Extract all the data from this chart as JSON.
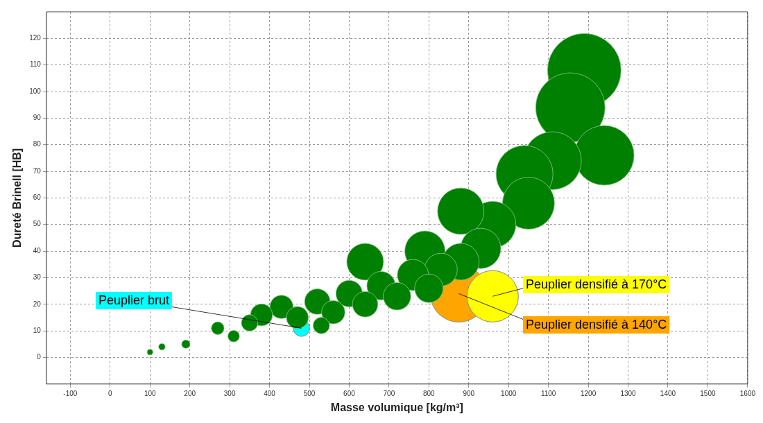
{
  "chart_data": {
    "type": "bubble",
    "xlabel": "Masse volumique [kg/m³]",
    "ylabel": "Dureté Brinell [HB]",
    "xlim": [
      -160,
      1600
    ],
    "ylim": [
      -10,
      130
    ],
    "xticks": [
      -100,
      0,
      100,
      200,
      300,
      400,
      500,
      600,
      700,
      800,
      900,
      1000,
      1100,
      1200,
      1300,
      1400,
      1500,
      1600
    ],
    "yticks": [
      0,
      10,
      20,
      30,
      40,
      50,
      60,
      70,
      80,
      90,
      100,
      110,
      120
    ],
    "grid": true,
    "legend": false,
    "series": [
      {
        "color": "#008000",
        "x": [
          1190,
          1155,
          1240,
          1110,
          1040,
          1050,
          960,
          880,
          930,
          790,
          880,
          640,
          830,
          760,
          680,
          800,
          720,
          600,
          640,
          520,
          560,
          430,
          470,
          380,
          350,
          530,
          270,
          310,
          190,
          130,
          100
        ],
        "values": [
          108,
          94,
          76,
          74,
          69,
          58,
          50,
          55,
          41,
          40,
          36,
          36,
          33,
          31,
          27,
          26,
          23,
          24,
          20,
          21,
          17,
          19,
          15,
          16,
          13,
          12,
          11,
          8,
          5,
          4,
          2
        ],
        "sizes": [
          1,
          0.89,
          0.66,
          0.62,
          0.6,
          0.5,
          0.4,
          0.4,
          0.3,
          0.3,
          0.25,
          0.25,
          0.2,
          0.18,
          0.15,
          0.15,
          0.14,
          0.13,
          0.12,
          0.12,
          0.1,
          0.1,
          0.09,
          0.09,
          0.05,
          0.05,
          0.03,
          0.025,
          0.013,
          0.008,
          0.006
        ]
      },
      {
        "name": "Peuplier brut",
        "color": "#00ffff",
        "x": [
          480
        ],
        "values": [
          11
        ],
        "sizes": [
          0.05
        ]
      },
      {
        "name": "Peuplier densifié à 170°C",
        "color": "#ffff00",
        "x": [
          960
        ],
        "values": [
          23
        ],
        "sizes": [
          0.49
        ]
      },
      {
        "name": "Peuplier densifié à 140°C",
        "color": "#ffa500",
        "x": [
          875
        ],
        "values": [
          24
        ],
        "sizes": [
          0.6
        ]
      }
    ]
  }
}
